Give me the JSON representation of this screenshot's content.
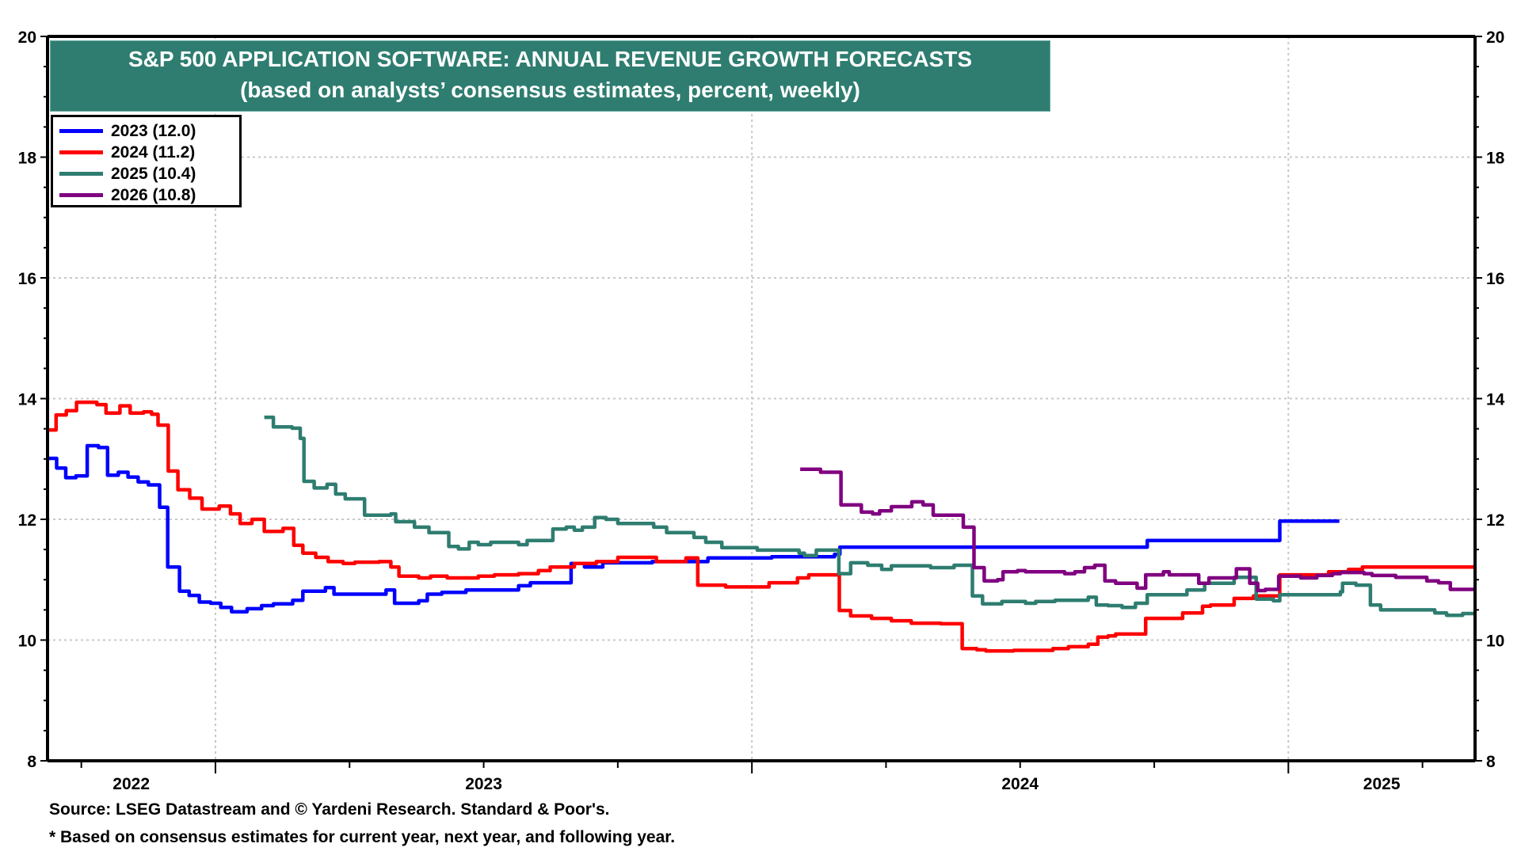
{
  "chart_data": {
    "type": "line",
    "title": "S&P 500 APPLICATION SOFTWARE: ANNUAL REVENUE GROWTH FORECASTS",
    "subtitle": "(based on analysts’ consensus estimates, percent, weekly)",
    "xlabel": "",
    "ylabel": "",
    "xlim": [
      2022.687,
      2025.348
    ],
    "ylim": [
      8,
      20
    ],
    "yticks": [
      8,
      10,
      12,
      14,
      16,
      18,
      20
    ],
    "ytick_labels": [
      "8",
      "10",
      "12",
      "14",
      "16",
      "18",
      "20"
    ],
    "x_year_boundaries": [
      2023,
      2024,
      2025
    ],
    "x_quarter_ticks": [
      2022.75,
      2023.25,
      2023.5,
      2023.75,
      2024.25,
      2024.5,
      2024.75,
      2025.25
    ],
    "xtick_labels": [
      {
        "label": "2022",
        "position": 2022.843
      },
      {
        "label": "2023",
        "position": 2023.5
      },
      {
        "label": "2024",
        "position": 2024.5
      },
      {
        "label": "2025",
        "position": 2025.174
      }
    ],
    "grid": true,
    "dual_y_axis": true,
    "legend_position": "top-left",
    "step_lines": true,
    "series": [
      {
        "name": "2023 (12.0)",
        "year": "2023",
        "last_value": 12.0,
        "color": "#0000ff",
        "points": [
          [
            2022.687,
            13.01
          ],
          [
            2022.704,
            12.85
          ],
          [
            2022.721,
            12.69
          ],
          [
            2022.74,
            12.72
          ],
          [
            2022.761,
            13.22
          ],
          [
            2022.782,
            13.19
          ],
          [
            2022.799,
            12.73
          ],
          [
            2022.819,
            12.78
          ],
          [
            2022.837,
            12.7
          ],
          [
            2022.856,
            12.62
          ],
          [
            2022.875,
            12.57
          ],
          [
            2022.896,
            12.2
          ],
          [
            2022.911,
            11.21
          ],
          [
            2022.933,
            10.81
          ],
          [
            2022.951,
            10.74
          ],
          [
            2022.97,
            10.63
          ],
          [
            2022.991,
            10.61
          ],
          [
            2023.01,
            10.54
          ],
          [
            2023.03,
            10.47
          ],
          [
            2023.059,
            10.52
          ],
          [
            2023.086,
            10.57
          ],
          [
            2023.108,
            10.6
          ],
          [
            2023.144,
            10.66
          ],
          [
            2023.163,
            10.81
          ],
          [
            2023.205,
            10.87
          ],
          [
            2023.221,
            10.76
          ],
          [
            2023.318,
            10.83
          ],
          [
            2023.334,
            10.61
          ],
          [
            2023.379,
            10.65
          ],
          [
            2023.395,
            10.76
          ],
          [
            2023.422,
            10.79
          ],
          [
            2023.467,
            10.83
          ],
          [
            2023.565,
            10.9
          ],
          [
            2023.587,
            10.95
          ],
          [
            2023.663,
            11.27
          ],
          [
            2023.688,
            11.21
          ],
          [
            2023.722,
            11.28
          ],
          [
            2023.814,
            11.3
          ],
          [
            2023.918,
            11.36
          ],
          [
            2024.037,
            11.38
          ],
          [
            2024.154,
            11.42
          ],
          [
            2024.164,
            11.54
          ],
          [
            2024.737,
            11.65
          ],
          [
            2024.984,
            11.97
          ],
          [
            2025.095,
            11.97
          ]
        ]
      },
      {
        "name": "2024 (11.2)",
        "year": "2024",
        "last_value": 11.2,
        "color": "#ff0000",
        "points": [
          [
            2022.687,
            13.48
          ],
          [
            2022.703,
            13.73
          ],
          [
            2022.722,
            13.8
          ],
          [
            2022.741,
            13.94
          ],
          [
            2022.779,
            13.9
          ],
          [
            2022.796,
            13.76
          ],
          [
            2022.822,
            13.88
          ],
          [
            2022.841,
            13.76
          ],
          [
            2022.866,
            13.78
          ],
          [
            2022.881,
            13.74
          ],
          [
            2022.893,
            13.56
          ],
          [
            2022.912,
            12.8
          ],
          [
            2022.93,
            12.49
          ],
          [
            2022.952,
            12.35
          ],
          [
            2022.975,
            12.17
          ],
          [
            2023.007,
            12.22
          ],
          [
            2023.028,
            12.09
          ],
          [
            2023.046,
            11.93
          ],
          [
            2023.068,
            12.0
          ],
          [
            2023.091,
            11.8
          ],
          [
            2023.126,
            11.85
          ],
          [
            2023.146,
            11.57
          ],
          [
            2023.163,
            11.44
          ],
          [
            2023.187,
            11.37
          ],
          [
            2023.21,
            11.3
          ],
          [
            2023.238,
            11.27
          ],
          [
            2023.26,
            11.29
          ],
          [
            2023.305,
            11.3
          ],
          [
            2023.327,
            11.21
          ],
          [
            2023.342,
            11.06
          ],
          [
            2023.379,
            11.03
          ],
          [
            2023.401,
            11.06
          ],
          [
            2023.432,
            11.03
          ],
          [
            2023.49,
            11.06
          ],
          [
            2023.52,
            11.08
          ],
          [
            2023.565,
            11.1
          ],
          [
            2023.602,
            11.15
          ],
          [
            2023.624,
            11.21
          ],
          [
            2023.669,
            11.27
          ],
          [
            2023.71,
            11.3
          ],
          [
            2023.75,
            11.37
          ],
          [
            2023.822,
            11.3
          ],
          [
            2023.877,
            11.36
          ],
          [
            2023.899,
            10.91
          ],
          [
            2023.951,
            10.88
          ],
          [
            2024.032,
            10.95
          ],
          [
            2024.085,
            11.03
          ],
          [
            2024.106,
            11.08
          ],
          [
            2024.163,
            10.49
          ],
          [
            2024.184,
            10.4
          ],
          [
            2024.223,
            10.36
          ],
          [
            2024.26,
            10.32
          ],
          [
            2024.297,
            10.28
          ],
          [
            2024.352,
            10.27
          ],
          [
            2024.392,
            9.86
          ],
          [
            2024.419,
            9.84
          ],
          [
            2024.436,
            9.82
          ],
          [
            2024.488,
            9.83
          ],
          [
            2024.561,
            9.86
          ],
          [
            2024.59,
            9.89
          ],
          [
            2024.627,
            9.93
          ],
          [
            2024.645,
            10.05
          ],
          [
            2024.664,
            10.07
          ],
          [
            2024.678,
            10.1
          ],
          [
            2024.734,
            10.36
          ],
          [
            2024.803,
            10.45
          ],
          [
            2024.84,
            10.56
          ],
          [
            2024.855,
            10.58
          ],
          [
            2024.899,
            10.69
          ],
          [
            2024.935,
            10.73
          ],
          [
            2024.984,
            11.08
          ],
          [
            2025.075,
            11.13
          ],
          [
            2025.112,
            11.17
          ],
          [
            2025.138,
            11.21
          ],
          [
            2025.346,
            11.21
          ]
        ]
      },
      {
        "name": "2025 (10.4)",
        "year": "2025",
        "last_value": 10.4,
        "color": "#2e7d70",
        "points": [
          [
            2023.091,
            13.69
          ],
          [
            2023.108,
            13.53
          ],
          [
            2023.143,
            13.51
          ],
          [
            2023.158,
            13.34
          ],
          [
            2023.165,
            12.63
          ],
          [
            2023.184,
            12.52
          ],
          [
            2023.208,
            12.58
          ],
          [
            2023.224,
            12.42
          ],
          [
            2023.242,
            12.34
          ],
          [
            2023.278,
            12.07
          ],
          [
            2023.327,
            12.09
          ],
          [
            2023.336,
            11.96
          ],
          [
            2023.371,
            11.87
          ],
          [
            2023.398,
            11.78
          ],
          [
            2023.435,
            11.55
          ],
          [
            2023.453,
            11.51
          ],
          [
            2023.473,
            11.62
          ],
          [
            2023.49,
            11.58
          ],
          [
            2023.513,
            11.62
          ],
          [
            2023.565,
            11.58
          ],
          [
            2023.581,
            11.65
          ],
          [
            2023.629,
            11.84
          ],
          [
            2023.654,
            11.87
          ],
          [
            2023.669,
            11.82
          ],
          [
            2023.684,
            11.87
          ],
          [
            2023.707,
            12.03
          ],
          [
            2023.728,
            12.0
          ],
          [
            2023.75,
            11.93
          ],
          [
            2023.817,
            11.87
          ],
          [
            2023.841,
            11.78
          ],
          [
            2023.892,
            11.7
          ],
          [
            2023.914,
            11.62
          ],
          [
            2023.944,
            11.53
          ],
          [
            2024.01,
            11.49
          ],
          [
            2024.088,
            11.44
          ],
          [
            2024.098,
            11.4
          ],
          [
            2024.12,
            11.49
          ],
          [
            2024.162,
            11.1
          ],
          [
            2024.184,
            11.28
          ],
          [
            2024.216,
            11.24
          ],
          [
            2024.242,
            11.17
          ],
          [
            2024.26,
            11.23
          ],
          [
            2024.333,
            11.2
          ],
          [
            2024.377,
            11.24
          ],
          [
            2024.411,
            10.73
          ],
          [
            2024.43,
            10.6
          ],
          [
            2024.466,
            10.64
          ],
          [
            2024.51,
            10.61
          ],
          [
            2024.529,
            10.64
          ],
          [
            2024.565,
            10.66
          ],
          [
            2024.627,
            10.71
          ],
          [
            2024.642,
            10.58
          ],
          [
            2024.664,
            10.57
          ],
          [
            2024.69,
            10.54
          ],
          [
            2024.715,
            10.61
          ],
          [
            2024.737,
            10.75
          ],
          [
            2024.811,
            10.83
          ],
          [
            2024.844,
            10.94
          ],
          [
            2024.899,
            11.04
          ],
          [
            2024.94,
            10.68
          ],
          [
            2024.972,
            10.65
          ],
          [
            2024.984,
            10.75
          ],
          [
            2025.097,
            10.8
          ],
          [
            2025.101,
            10.94
          ],
          [
            2025.126,
            10.91
          ],
          [
            2025.153,
            10.58
          ],
          [
            2025.172,
            10.5
          ],
          [
            2025.273,
            10.45
          ],
          [
            2025.295,
            10.41
          ],
          [
            2025.325,
            10.44
          ],
          [
            2025.346,
            10.44
          ]
        ]
      },
      {
        "name": "2026 (10.8)",
        "year": "2026",
        "last_value": 10.8,
        "color": "#800080",
        "points": [
          [
            2024.09,
            12.83
          ],
          [
            2024.128,
            12.78
          ],
          [
            2024.166,
            12.24
          ],
          [
            2024.204,
            12.12
          ],
          [
            2024.225,
            12.09
          ],
          [
            2024.238,
            12.14
          ],
          [
            2024.26,
            12.21
          ],
          [
            2024.298,
            12.29
          ],
          [
            2024.319,
            12.24
          ],
          [
            2024.338,
            12.07
          ],
          [
            2024.394,
            11.87
          ],
          [
            2024.414,
            11.2
          ],
          [
            2024.433,
            10.98
          ],
          [
            2024.458,
            11.0
          ],
          [
            2024.468,
            11.13
          ],
          [
            2024.495,
            11.15
          ],
          [
            2024.51,
            11.13
          ],
          [
            2024.583,
            11.1
          ],
          [
            2024.602,
            11.13
          ],
          [
            2024.62,
            11.2
          ],
          [
            2024.639,
            11.24
          ],
          [
            2024.658,
            10.98
          ],
          [
            2024.678,
            10.94
          ],
          [
            2024.718,
            10.86
          ],
          [
            2024.734,
            11.08
          ],
          [
            2024.767,
            11.13
          ],
          [
            2024.778,
            11.08
          ],
          [
            2024.833,
            10.94
          ],
          [
            2024.852,
            11.03
          ],
          [
            2024.903,
            11.18
          ],
          [
            2024.928,
            10.94
          ],
          [
            2024.943,
            10.82
          ],
          [
            2024.957,
            10.84
          ],
          [
            2024.982,
            11.06
          ],
          [
            2025.023,
            11.03
          ],
          [
            2025.053,
            11.07
          ],
          [
            2025.082,
            11.1
          ],
          [
            2025.097,
            11.12
          ],
          [
            2025.141,
            11.1
          ],
          [
            2025.156,
            11.07
          ],
          [
            2025.2,
            11.04
          ],
          [
            2025.258,
            10.98
          ],
          [
            2025.28,
            10.95
          ],
          [
            2025.302,
            10.84
          ],
          [
            2025.346,
            10.84
          ]
        ]
      }
    ],
    "annotations": [
      "Source: LSEG Datastream and © Yardeni Research. Standard & Poor's.",
      "* Based on consensus estimates for current year, next year, and following year."
    ]
  },
  "title": {
    "line1": "S&P 500 APPLICATION SOFTWARE: ANNUAL REVENUE GROWTH FORECASTS",
    "line2": "(based on analysts’ consensus estimates, percent, weekly)",
    "background_color": "#2e7d70"
  },
  "legend": {
    "items": [
      {
        "label": "2023 (12.0)",
        "color": "#0000ff"
      },
      {
        "label": "2024 (11.2)",
        "color": "#ff0000"
      },
      {
        "label": "2025 (10.4)",
        "color": "#2e7d70"
      },
      {
        "label": "2026 (10.8)",
        "color": "#800080"
      }
    ]
  },
  "footer": {
    "source": "Source: LSEG Datastream and © Yardeni Research. Standard & Poor's.",
    "note": "* Based on consensus estimates for current year, next year, and following year."
  }
}
